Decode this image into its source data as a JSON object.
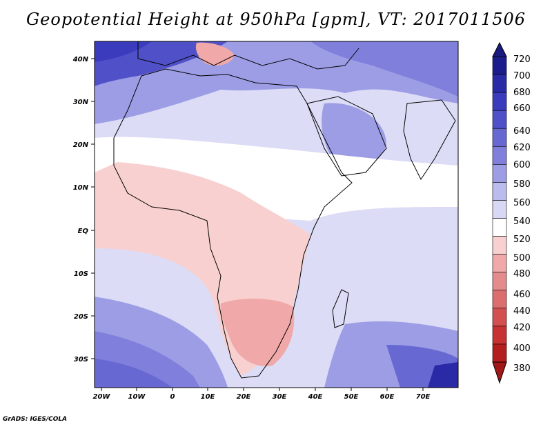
{
  "title": "Geopotential Height at 950hPa [gpm], VT: 2017011506",
  "credit": "GrADS: IGES/COLA",
  "lon_ticks": [
    "20W",
    "10W",
    "0",
    "10E",
    "20E",
    "30E",
    "40E",
    "50E",
    "60E",
    "70E"
  ],
  "lat_ticks": [
    "40N",
    "30N",
    "20N",
    "10N",
    "EQ",
    "10S",
    "20S",
    "30S"
  ],
  "colorbar": {
    "labels": [
      "720",
      "700",
      "680",
      "660",
      "640",
      "620",
      "600",
      "580",
      "560",
      "540",
      "520",
      "500",
      "480",
      "460",
      "440",
      "420",
      "400",
      "380"
    ],
    "colors": [
      "#1c1c8c",
      "#2a2aa6",
      "#3b3bbd",
      "#5050c8",
      "#6868d2",
      "#8080dc",
      "#9d9de6",
      "#bbbbee",
      "#d8d8f6",
      "#ffffff",
      "#f8d0d0",
      "#f0a8a8",
      "#e48c8c",
      "#dc6e6e",
      "#d45050",
      "#c83232",
      "#b41e1e"
    ],
    "top_arrow_color": "#1a1a80",
    "bottom_arrow_color": "#a01818"
  },
  "palette": {
    "ocean_west": "#d8d8f6",
    "north_high": "#5050c8",
    "south_high": "#6868d2",
    "land_low": "#f8d0d0",
    "land_lowest": "#f0a8a8"
  }
}
